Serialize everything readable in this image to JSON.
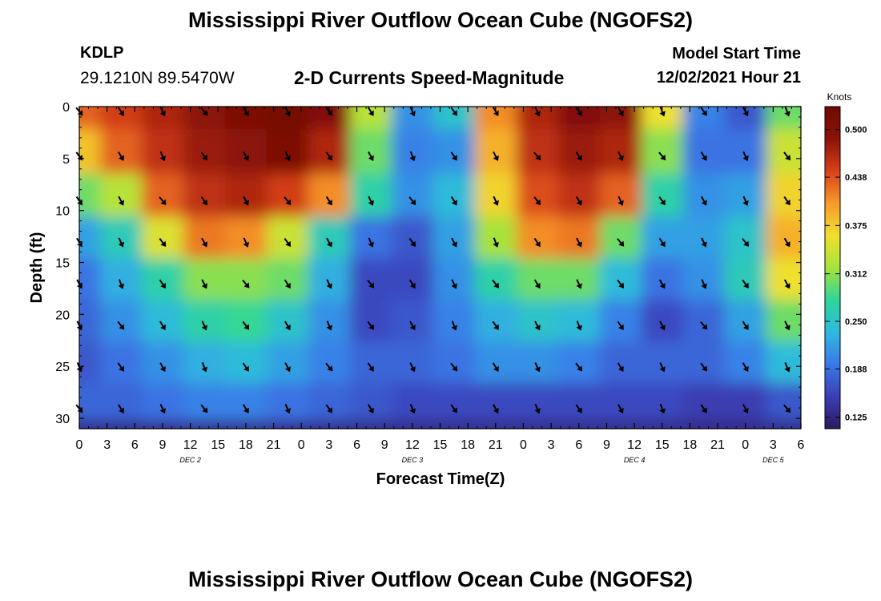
{
  "header": {
    "title": "Mississippi River Outflow Ocean Cube (NGOFS2)",
    "station_id": "KDLP",
    "coords": "29.1210N  89.5470W",
    "subtitle": "2-D Currents Speed-Magnitude",
    "model_start_label": "Model Start Time",
    "model_start_value": "12/02/2021 Hour 21"
  },
  "footer": {
    "title": "Mississippi River Outflow Ocean Cube (NGOFS2)"
  },
  "colors": {
    "colormap": [
      "#2a1a5e",
      "#3b3fb5",
      "#3a79e8",
      "#2fb8e0",
      "#2ed69a",
      "#a7e23a",
      "#f0e02e",
      "#f79a2a",
      "#d8401a",
      "#8c1208",
      "#6e0a05"
    ]
  },
  "chart_data": {
    "type": "heatmap",
    "title": "2-D Currents Speed-Magnitude",
    "xlabel": "Forecast Time(Z)",
    "ylabel": "Depth (ft)",
    "x_ticks": [
      "0",
      "3",
      "6",
      "9",
      "12",
      "15",
      "18",
      "21",
      "0",
      "3",
      "6",
      "9",
      "12",
      "15",
      "18",
      "21",
      "0",
      "3",
      "6",
      "9",
      "12",
      "15",
      "18",
      "21",
      "0",
      "3",
      "6"
    ],
    "date_labels": [
      "DEC 2",
      "DEC 3",
      "DEC 4",
      "DEC 5"
    ],
    "y_ticks": [
      "0",
      "5",
      "10",
      "15",
      "20",
      "25",
      "30"
    ],
    "ylim": [
      0,
      31
    ],
    "xlim_hours": [
      0,
      78
    ],
    "colorbar": {
      "label": "Knots",
      "ticks": [
        "0.500",
        "0.438",
        "0.375",
        "0.312",
        "0.250",
        "0.188",
        "0.125"
      ],
      "range": [
        0.11,
        0.53
      ]
    },
    "depths_ft": [
      0,
      4.3,
      8.6,
      12.6,
      16.6,
      20.6,
      24.6,
      28.6
    ],
    "arrow_hours": [
      0,
      4.5,
      9,
      13.5,
      18,
      22.5,
      27,
      31.5,
      36,
      40.5,
      45,
      49.5,
      54,
      58.5,
      63,
      67.5,
      72,
      76.5
    ],
    "speed_knots": [
      [
        0.43,
        0.45,
        0.47,
        0.49,
        0.51,
        0.52,
        0.5,
        0.33,
        0.21,
        0.25,
        0.41,
        0.47,
        0.5,
        0.49,
        0.36,
        0.2,
        0.17,
        0.3
      ],
      [
        0.38,
        0.43,
        0.46,
        0.48,
        0.49,
        0.51,
        0.47,
        0.3,
        0.2,
        0.21,
        0.39,
        0.46,
        0.48,
        0.47,
        0.31,
        0.19,
        0.19,
        0.34
      ],
      [
        0.3,
        0.33,
        0.43,
        0.46,
        0.47,
        0.45,
        0.41,
        0.27,
        0.21,
        0.24,
        0.37,
        0.44,
        0.46,
        0.43,
        0.27,
        0.21,
        0.22,
        0.37
      ],
      [
        0.22,
        0.26,
        0.35,
        0.42,
        0.41,
        0.34,
        0.26,
        0.19,
        0.17,
        0.22,
        0.32,
        0.41,
        0.42,
        0.3,
        0.22,
        0.22,
        0.25,
        0.39
      ],
      [
        0.19,
        0.23,
        0.27,
        0.31,
        0.31,
        0.3,
        0.23,
        0.16,
        0.16,
        0.21,
        0.27,
        0.3,
        0.3,
        0.24,
        0.19,
        0.21,
        0.26,
        0.36
      ],
      [
        0.18,
        0.21,
        0.24,
        0.27,
        0.28,
        0.25,
        0.21,
        0.16,
        0.17,
        0.2,
        0.23,
        0.25,
        0.24,
        0.2,
        0.16,
        0.18,
        0.22,
        0.3
      ],
      [
        0.17,
        0.19,
        0.21,
        0.23,
        0.24,
        0.22,
        0.2,
        0.18,
        0.18,
        0.19,
        0.21,
        0.21,
        0.2,
        0.18,
        0.18,
        0.18,
        0.2,
        0.24
      ],
      [
        0.18,
        0.18,
        0.19,
        0.2,
        0.2,
        0.19,
        0.18,
        0.17,
        0.16,
        0.16,
        0.16,
        0.16,
        0.16,
        0.16,
        0.16,
        0.15,
        0.15,
        0.17
      ]
    ],
    "bottom_speed_knots": 0.13
  }
}
